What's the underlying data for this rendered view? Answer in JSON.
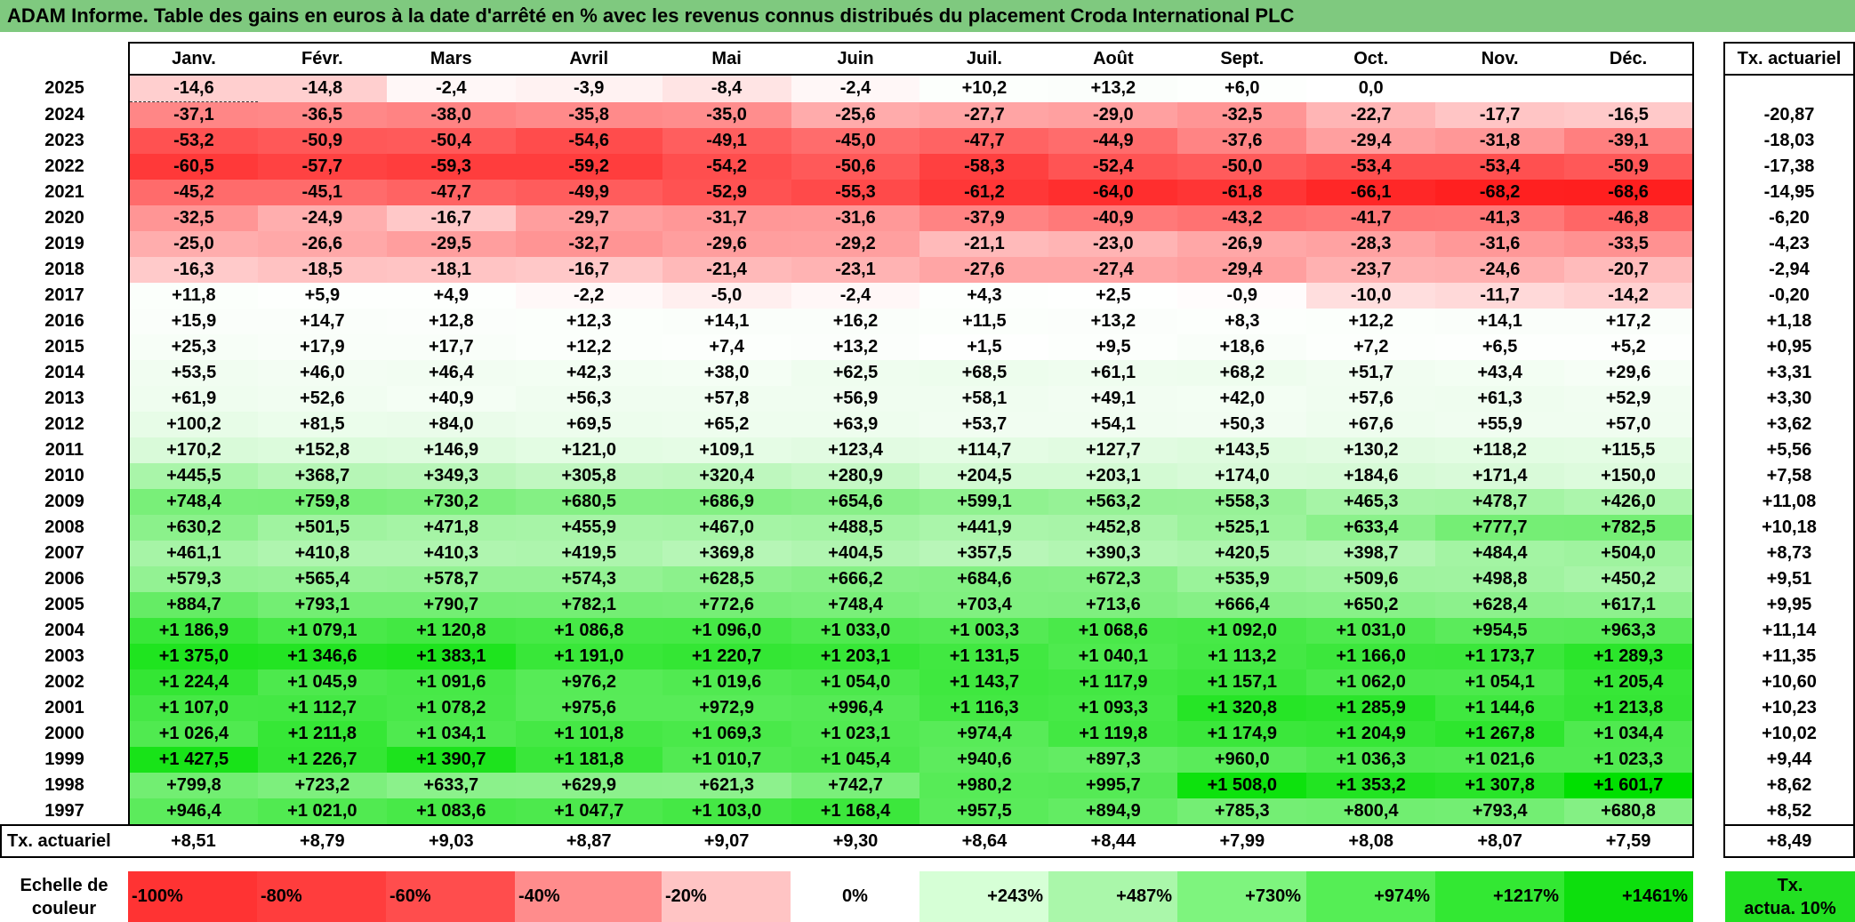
{
  "title": "ADAM Informe. Table des gains en euros à la date d'arrêté en % avec les revenus connus distribués du placement Croda International PLC",
  "months": [
    "Janv.",
    "Févr.",
    "Mars",
    "Avril",
    "Mai",
    "Juin",
    "Juil.",
    "Août",
    "Sept.",
    "Oct.",
    "Nov.",
    "Déc."
  ],
  "rate_header": "Tx. actuariel",
  "rows": [
    {
      "year": "2025",
      "values": [
        "-14,6",
        "-14,8",
        "-2,4",
        "-3,9",
        "-8,4",
        "-2,4",
        "+10,2",
        "+13,2",
        "+6,0",
        "0,0",
        "",
        ""
      ],
      "rate": ""
    },
    {
      "year": "2024",
      "values": [
        "-37,1",
        "-36,5",
        "-38,0",
        "-35,8",
        "-35,0",
        "-25,6",
        "-27,7",
        "-29,0",
        "-32,5",
        "-22,7",
        "-17,7",
        "-16,5"
      ],
      "rate": "-20,87"
    },
    {
      "year": "2023",
      "values": [
        "-53,2",
        "-50,9",
        "-50,4",
        "-54,6",
        "-49,1",
        "-45,0",
        "-47,7",
        "-44,9",
        "-37,6",
        "-29,4",
        "-31,8",
        "-39,1"
      ],
      "rate": "-18,03"
    },
    {
      "year": "2022",
      "values": [
        "-60,5",
        "-57,7",
        "-59,3",
        "-59,2",
        "-54,2",
        "-50,6",
        "-58,3",
        "-52,4",
        "-50,0",
        "-53,4",
        "-53,4",
        "-50,9"
      ],
      "rate": "-17,38"
    },
    {
      "year": "2021",
      "values": [
        "-45,2",
        "-45,1",
        "-47,7",
        "-49,9",
        "-52,9",
        "-55,3",
        "-61,2",
        "-64,0",
        "-61,8",
        "-66,1",
        "-68,2",
        "-68,6"
      ],
      "rate": "-14,95"
    },
    {
      "year": "2020",
      "values": [
        "-32,5",
        "-24,9",
        "-16,7",
        "-29,7",
        "-31,7",
        "-31,6",
        "-37,9",
        "-40,9",
        "-43,2",
        "-41,7",
        "-41,3",
        "-46,8"
      ],
      "rate": "-6,20"
    },
    {
      "year": "2019",
      "values": [
        "-25,0",
        "-26,6",
        "-29,5",
        "-32,7",
        "-29,6",
        "-29,2",
        "-21,1",
        "-23,0",
        "-26,9",
        "-28,3",
        "-31,6",
        "-33,5"
      ],
      "rate": "-4,23"
    },
    {
      "year": "2018",
      "values": [
        "-16,3",
        "-18,5",
        "-18,1",
        "-16,7",
        "-21,4",
        "-23,1",
        "-27,6",
        "-27,4",
        "-29,4",
        "-23,7",
        "-24,6",
        "-20,7"
      ],
      "rate": "-2,94"
    },
    {
      "year": "2017",
      "values": [
        "+11,8",
        "+5,9",
        "+4,9",
        "-2,2",
        "-5,0",
        "-2,4",
        "+4,3",
        "+2,5",
        "-0,9",
        "-10,0",
        "-11,7",
        "-14,2"
      ],
      "rate": "-0,20"
    },
    {
      "year": "2016",
      "values": [
        "+15,9",
        "+14,7",
        "+12,8",
        "+12,3",
        "+14,1",
        "+16,2",
        "+11,5",
        "+13,2",
        "+8,3",
        "+12,2",
        "+14,1",
        "+17,2"
      ],
      "rate": "+1,18"
    },
    {
      "year": "2015",
      "values": [
        "+25,3",
        "+17,9",
        "+17,7",
        "+12,2",
        "+7,4",
        "+13,2",
        "+1,5",
        "+9,5",
        "+18,6",
        "+7,2",
        "+6,5",
        "+5,2"
      ],
      "rate": "+0,95"
    },
    {
      "year": "2014",
      "values": [
        "+53,5",
        "+46,0",
        "+46,4",
        "+42,3",
        "+38,0",
        "+62,5",
        "+68,5",
        "+61,1",
        "+68,2",
        "+51,7",
        "+43,4",
        "+29,6"
      ],
      "rate": "+3,31"
    },
    {
      "year": "2013",
      "values": [
        "+61,9",
        "+52,6",
        "+40,9",
        "+56,3",
        "+57,8",
        "+56,9",
        "+58,1",
        "+49,1",
        "+42,0",
        "+57,6",
        "+61,3",
        "+52,9"
      ],
      "rate": "+3,30"
    },
    {
      "year": "2012",
      "values": [
        "+100,2",
        "+81,5",
        "+84,0",
        "+69,5",
        "+65,2",
        "+63,9",
        "+53,7",
        "+54,1",
        "+50,3",
        "+67,6",
        "+55,9",
        "+57,0"
      ],
      "rate": "+3,62"
    },
    {
      "year": "2011",
      "values": [
        "+170,2",
        "+152,8",
        "+146,9",
        "+121,0",
        "+109,1",
        "+123,4",
        "+114,7",
        "+127,7",
        "+143,5",
        "+130,2",
        "+118,2",
        "+115,5"
      ],
      "rate": "+5,56"
    },
    {
      "year": "2010",
      "values": [
        "+445,5",
        "+368,7",
        "+349,3",
        "+305,8",
        "+320,4",
        "+280,9",
        "+204,5",
        "+203,1",
        "+174,0",
        "+184,6",
        "+171,4",
        "+150,0"
      ],
      "rate": "+7,58"
    },
    {
      "year": "2009",
      "values": [
        "+748,4",
        "+759,8",
        "+730,2",
        "+680,5",
        "+686,9",
        "+654,6",
        "+599,1",
        "+563,2",
        "+558,3",
        "+465,3",
        "+478,7",
        "+426,0"
      ],
      "rate": "+11,08"
    },
    {
      "year": "2008",
      "values": [
        "+630,2",
        "+501,5",
        "+471,8",
        "+455,9",
        "+467,0",
        "+488,5",
        "+441,9",
        "+452,8",
        "+525,1",
        "+633,4",
        "+777,7",
        "+782,5"
      ],
      "rate": "+10,18"
    },
    {
      "year": "2007",
      "values": [
        "+461,1",
        "+410,8",
        "+410,3",
        "+419,5",
        "+369,8",
        "+404,5",
        "+357,5",
        "+390,3",
        "+420,5",
        "+398,7",
        "+484,4",
        "+504,0"
      ],
      "rate": "+8,73"
    },
    {
      "year": "2006",
      "values": [
        "+579,3",
        "+565,4",
        "+578,7",
        "+574,3",
        "+628,5",
        "+666,2",
        "+684,6",
        "+672,3",
        "+535,9",
        "+509,6",
        "+498,8",
        "+450,2"
      ],
      "rate": "+9,51"
    },
    {
      "year": "2005",
      "values": [
        "+884,7",
        "+793,1",
        "+790,7",
        "+782,1",
        "+772,6",
        "+748,4",
        "+703,4",
        "+713,6",
        "+666,4",
        "+650,2",
        "+628,4",
        "+617,1"
      ],
      "rate": "+9,95"
    },
    {
      "year": "2004",
      "values": [
        "+1 186,9",
        "+1 079,1",
        "+1 120,8",
        "+1 086,8",
        "+1 096,0",
        "+1 033,0",
        "+1 003,3",
        "+1 068,6",
        "+1 092,0",
        "+1 031,0",
        "+954,5",
        "+963,3"
      ],
      "rate": "+11,14"
    },
    {
      "year": "2003",
      "values": [
        "+1 375,0",
        "+1 346,6",
        "+1 383,1",
        "+1 191,0",
        "+1 220,7",
        "+1 203,1",
        "+1 131,5",
        "+1 040,1",
        "+1 113,2",
        "+1 166,0",
        "+1 173,7",
        "+1 289,3"
      ],
      "rate": "+11,35"
    },
    {
      "year": "2002",
      "values": [
        "+1 224,4",
        "+1 045,9",
        "+1 091,6",
        "+976,2",
        "+1 019,6",
        "+1 054,0",
        "+1 143,7",
        "+1 117,9",
        "+1 157,1",
        "+1 062,0",
        "+1 054,1",
        "+1 205,4"
      ],
      "rate": "+10,60"
    },
    {
      "year": "2001",
      "values": [
        "+1 107,0",
        "+1 112,7",
        "+1 078,2",
        "+975,6",
        "+972,9",
        "+996,4",
        "+1 116,3",
        "+1 093,3",
        "+1 320,8",
        "+1 285,9",
        "+1 144,6",
        "+1 213,8"
      ],
      "rate": "+10,23"
    },
    {
      "year": "2000",
      "values": [
        "+1 026,4",
        "+1 211,8",
        "+1 034,1",
        "+1 101,8",
        "+1 069,3",
        "+1 023,1",
        "+974,4",
        "+1 119,8",
        "+1 174,9",
        "+1 204,9",
        "+1 267,8",
        "+1 034,4"
      ],
      "rate": "+10,02"
    },
    {
      "year": "1999",
      "values": [
        "+1 427,5",
        "+1 226,7",
        "+1 390,7",
        "+1 181,8",
        "+1 010,7",
        "+1 045,4",
        "+940,6",
        "+897,3",
        "+960,0",
        "+1 036,3",
        "+1 021,6",
        "+1 023,3"
      ],
      "rate": "+9,44"
    },
    {
      "year": "1998",
      "values": [
        "+799,8",
        "+723,2",
        "+633,7",
        "+629,9",
        "+621,3",
        "+742,7",
        "+980,2",
        "+995,7",
        "+1 508,0",
        "+1 353,2",
        "+1 307,8",
        "+1 601,7"
      ],
      "rate": "+8,62"
    },
    {
      "year": "1997",
      "values": [
        "+946,4",
        "+1 021,0",
        "+1 083,6",
        "+1 047,7",
        "+1 103,0",
        "+1 168,4",
        "+957,5",
        "+894,9",
        "+785,3",
        "+800,4",
        "+793,4",
        "+680,8"
      ],
      "rate": "+8,52"
    }
  ],
  "footer": {
    "label": "Tx. actuariel",
    "values": [
      "+8,51",
      "+8,79",
      "+9,03",
      "+8,87",
      "+9,07",
      "+9,30",
      "+8,64",
      "+8,44",
      "+7,99",
      "+8,08",
      "+8,07",
      "+7,59"
    ],
    "overall": "+8,49"
  },
  "legend": {
    "label_line1": "Echelle de",
    "label_line2": "couleur",
    "swatches": [
      {
        "text": "-100%",
        "color": "#ff3333"
      },
      {
        "text": "-80%",
        "color": "#ff3d3d"
      },
      {
        "text": "-60%",
        "color": "#ff4d4d"
      },
      {
        "text": "-40%",
        "color": "#ff8c8c"
      },
      {
        "text": "-20%",
        "color": "#ffc4c4"
      },
      {
        "text": "0%",
        "color": "#ffffff"
      },
      {
        "text": "+243%",
        "color": "#d6ffd6"
      },
      {
        "text": "+487%",
        "color": "#aaf7aa"
      },
      {
        "text": "+730%",
        "color": "#7ef47e"
      },
      {
        "text": "+974%",
        "color": "#55ee55"
      },
      {
        "text": "+1217%",
        "color": "#33e833"
      },
      {
        "text": "+1461%",
        "color": "#0ddf0d"
      }
    ],
    "actua_line1": "Tx.",
    "actua_line2": "actua. 10%"
  }
}
